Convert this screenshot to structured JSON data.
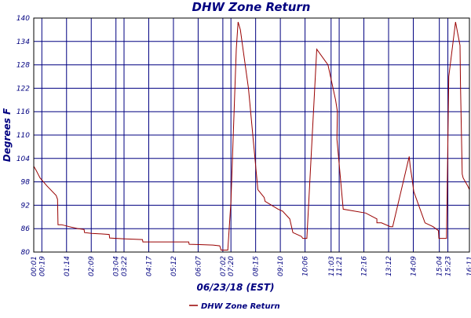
{
  "chart_data": {
    "type": "line",
    "title": "DHW Zone Return",
    "xlabel": "06/23/18 (EST)",
    "ylabel": "Degrees F",
    "ylim": [
      80,
      140
    ],
    "yticks": [
      80,
      86,
      92,
      98,
      104,
      110,
      116,
      122,
      128,
      134,
      140
    ],
    "ytick_labels": [
      "80",
      "86",
      "92",
      "98",
      "104",
      "110",
      "116",
      "122",
      "128",
      "134",
      "140"
    ],
    "xlim": [
      1,
      971
    ],
    "xticks": [
      1,
      19,
      74,
      129,
      184,
      202,
      257,
      312,
      367,
      422,
      440,
      495,
      550,
      605,
      663,
      681,
      736,
      791,
      846,
      904,
      923,
      971
    ],
    "xtick_labels": [
      "00:01",
      "00:19",
      "01:14",
      "02:09",
      "03:04",
      "03:22",
      "04:17",
      "05:12",
      "06:07",
      "07:02",
      "07:20",
      "08:15",
      "09:10",
      "10:06",
      "11:03",
      "11:21",
      "12:16",
      "13:12",
      "14:09",
      "15:04",
      "15:23",
      "16:11"
    ],
    "grid": true,
    "legend_position": "bottom",
    "series": [
      {
        "name": "DHW Zone Return",
        "color": "#990000",
        "x": [
          1,
          6,
          15,
          30,
          51,
          54,
          55,
          63,
          80,
          100,
          113,
          114,
          130,
          160,
          169,
          170,
          200,
          243,
          244,
          280,
          300,
          346,
          347,
          400,
          415,
          416,
          418,
          424,
          429,
          433,
          440,
          452,
          456,
          461,
          467,
          479,
          500,
          514,
          516,
          545,
          555,
          571,
          578,
          591,
          597,
          600,
          609,
          631,
          656,
          673,
          677,
          676,
          690,
          740,
          765,
          765,
          775,
          795,
          800,
          837,
          839,
          843,
          847,
          872,
          890,
          902,
          903,
          920,
          925,
          940,
          950,
          951,
          955,
          957,
          967,
          971
        ],
        "y": [
          102,
          101,
          99,
          97,
          94.5,
          93.5,
          87,
          87,
          86.5,
          86,
          85.8,
          85,
          84.8,
          84.6,
          84.5,
          83.6,
          83.4,
          83.2,
          82.6,
          82.6,
          82.6,
          82.6,
          82,
          81.8,
          81.6,
          81.3,
          80.5,
          80.5,
          80.5,
          80.5,
          93,
          132,
          139,
          137,
          132,
          122,
          96,
          94,
          93,
          91,
          90.5,
          88.5,
          85,
          84.3,
          84,
          83.5,
          83.5,
          132,
          128,
          119,
          116,
          109,
          91,
          90,
          88.5,
          87.5,
          87.5,
          86.5,
          86.5,
          104.5,
          102,
          99,
          95.5,
          87.5,
          86.5,
          85.5,
          83.5,
          83.5,
          125,
          139,
          133,
          123,
          100,
          99,
          97,
          96
        ]
      }
    ]
  }
}
